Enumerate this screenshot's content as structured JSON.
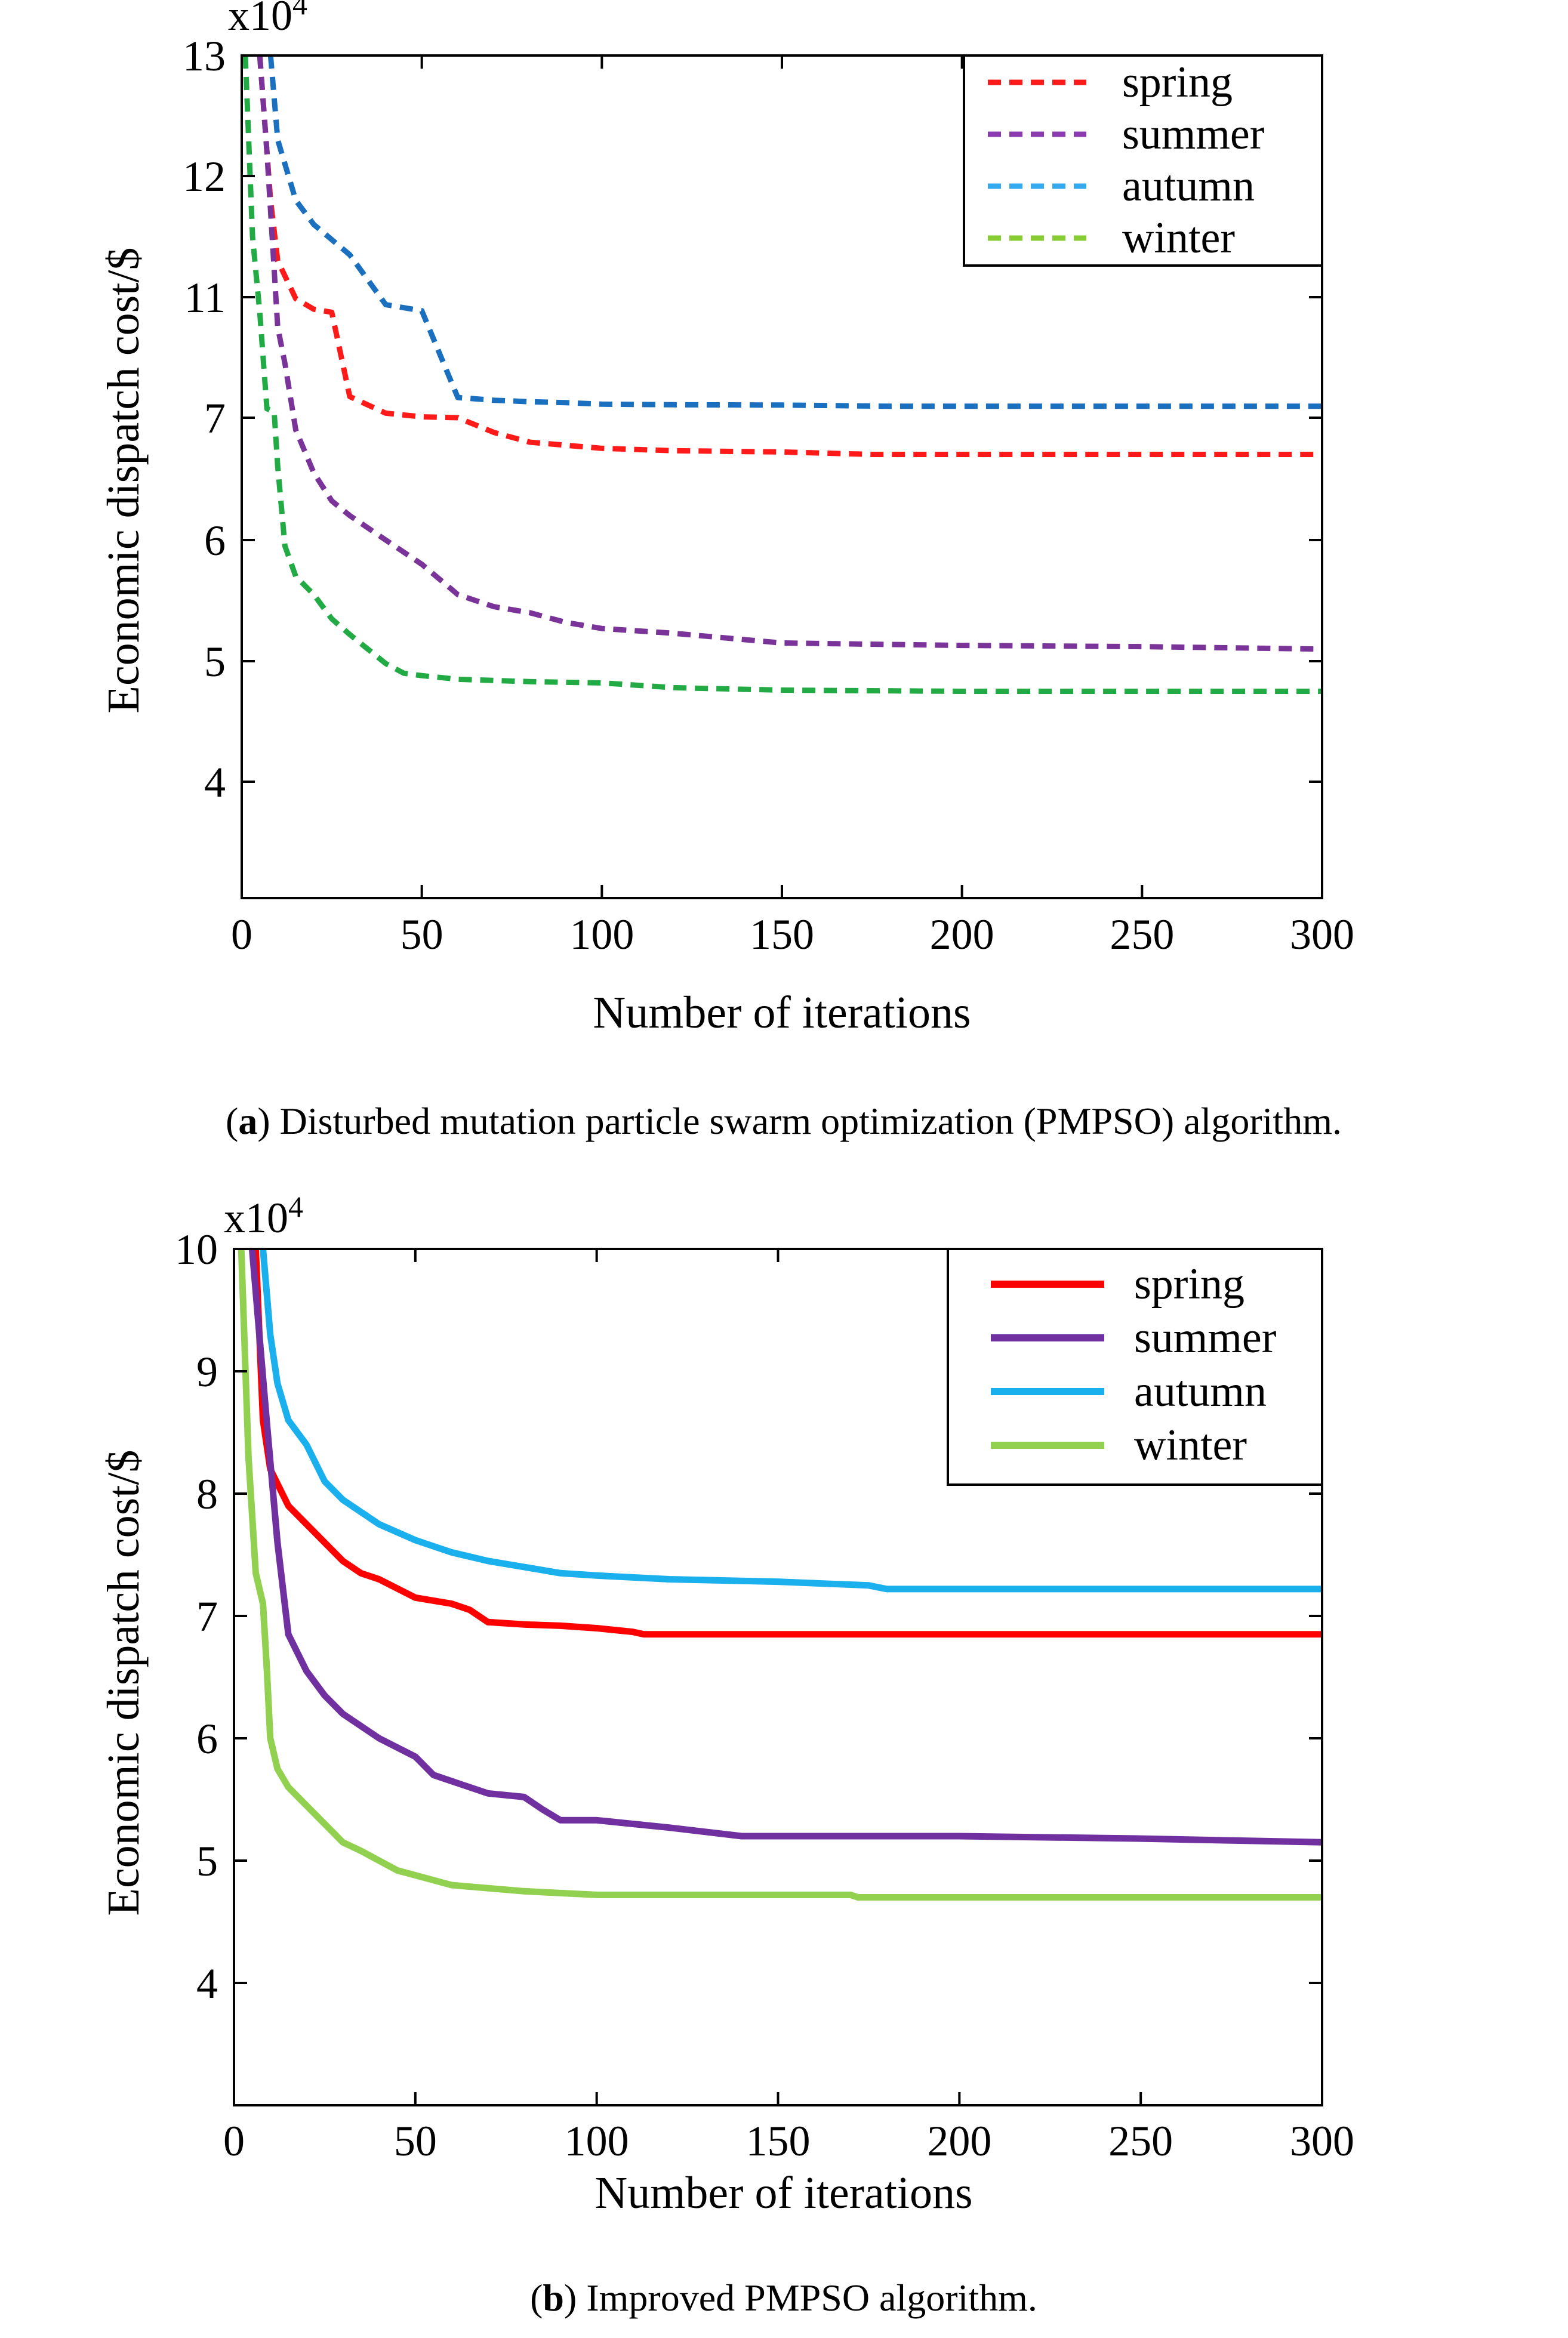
{
  "chart_data": [
    {
      "type": "line",
      "panel": "a",
      "title": "",
      "xlabel": "Number of iterations",
      "ylabel": "Economic dispatch cost/$",
      "y_multiplier": "x10",
      "y_multiplier_exp": "4",
      "xlim": [
        0,
        300
      ],
      "xticks": [
        0,
        50,
        100,
        150,
        200,
        250,
        300
      ],
      "yticks": [
        4,
        5,
        6,
        7,
        11,
        12,
        13
      ],
      "line_style": "dashed",
      "legend_position": "top-right",
      "caption_label": "a",
      "caption_text": "Disturbed mutation particle swarm optimization (PMPSO) algorithm.",
      "series": [
        {
          "name": "spring",
          "color": "#ff1a1a",
          "legend_color": "#ff1a1a",
          "x": [
            5,
            8,
            10,
            15,
            20,
            25,
            30,
            40,
            50,
            60,
            70,
            80,
            100,
            120,
            150,
            175,
            200,
            250,
            300
          ],
          "y": [
            13,
            11.8,
            11.3,
            10.95,
            10.6,
            10.5,
            7.7,
            7.15,
            7.03,
            7.0,
            6.88,
            6.8,
            6.75,
            6.73,
            6.72,
            6.7,
            6.7,
            6.7,
            6.7
          ]
        },
        {
          "name": "summer",
          "color": "#7a3399",
          "legend_color": "#8a3bb0",
          "x": [
            5,
            7,
            10,
            12,
            15,
            20,
            25,
            30,
            40,
            50,
            60,
            70,
            80,
            90,
            100,
            120,
            150,
            200,
            250,
            300
          ],
          "y": [
            13,
            12.2,
            10.0,
            8.8,
            6.9,
            6.55,
            6.32,
            6.2,
            6.0,
            5.8,
            5.55,
            5.45,
            5.4,
            5.32,
            5.27,
            5.23,
            5.15,
            5.13,
            5.12,
            5.1
          ]
        },
        {
          "name": "autumn",
          "color": "#1a6fbf",
          "legend_color": "#33aaee",
          "x": [
            8,
            10,
            15,
            20,
            30,
            40,
            50,
            60,
            70,
            80,
            90,
            100,
            120,
            150,
            180,
            200,
            250,
            300
          ],
          "y": [
            13,
            12.3,
            11.8,
            11.6,
            11.35,
            10.75,
            10.55,
            7.67,
            7.58,
            7.53,
            7.5,
            7.45,
            7.43,
            7.42,
            7.38,
            7.38,
            7.38,
            7.38
          ]
        },
        {
          "name": "winter",
          "color": "#22aa44",
          "legend_color": "#88cc33",
          "x": [
            1,
            3,
            5,
            7,
            9,
            10,
            12,
            15,
            20,
            25,
            30,
            35,
            40,
            45,
            50,
            60,
            70,
            80,
            100,
            120,
            150,
            200,
            250,
            300
          ],
          "y": [
            13,
            11.5,
            10.5,
            7.3,
            7.2,
            6.6,
            5.95,
            5.7,
            5.55,
            5.35,
            5.22,
            5.1,
            4.98,
            4.9,
            4.88,
            4.85,
            4.84,
            4.83,
            4.82,
            4.78,
            4.76,
            4.75,
            4.75,
            4.75
          ]
        }
      ]
    },
    {
      "type": "line",
      "panel": "b",
      "title": "",
      "xlabel": "Number of iterations",
      "ylabel": "Economic dispatch cost/$",
      "y_multiplier": "x10",
      "y_multiplier_exp": "4",
      "xlim": [
        0,
        300
      ],
      "ylim": [
        3,
        10
      ],
      "xticks": [
        0,
        50,
        100,
        150,
        200,
        250,
        300
      ],
      "yticks": [
        4,
        5,
        6,
        7,
        8,
        9,
        10
      ],
      "line_style": "solid",
      "legend_position": "top-right",
      "caption_label": "b",
      "caption_text": "Improved PMPSO algorithm.",
      "series": [
        {
          "name": "spring",
          "color": "#ff0000",
          "x": [
            6,
            8,
            10,
            15,
            20,
            25,
            30,
            35,
            40,
            50,
            60,
            65,
            70,
            80,
            90,
            100,
            110,
            113,
            150,
            200,
            250,
            300
          ],
          "y": [
            10,
            8.6,
            8.2,
            7.9,
            7.75,
            7.6,
            7.45,
            7.35,
            7.3,
            7.15,
            7.1,
            7.05,
            6.95,
            6.93,
            6.92,
            6.9,
            6.87,
            6.85,
            6.85,
            6.85,
            6.85,
            6.85
          ]
        },
        {
          "name": "summer",
          "color": "#7030a0",
          "x": [
            5,
            7,
            9,
            12,
            15,
            20,
            25,
            30,
            40,
            50,
            55,
            60,
            70,
            80,
            85,
            90,
            100,
            110,
            120,
            140,
            150,
            200,
            250,
            300
          ],
          "y": [
            10,
            9.3,
            8.6,
            7.6,
            6.85,
            6.55,
            6.35,
            6.2,
            6.0,
            5.85,
            5.7,
            5.65,
            5.55,
            5.52,
            5.42,
            5.33,
            5.33,
            5.3,
            5.27,
            5.2,
            5.2,
            5.2,
            5.18,
            5.15
          ]
        },
        {
          "name": "autumn",
          "color": "#1ab0ee",
          "x": [
            8,
            10,
            12,
            15,
            20,
            25,
            30,
            40,
            50,
            60,
            70,
            80,
            90,
            100,
            120,
            150,
            175,
            180,
            200,
            250,
            300
          ],
          "y": [
            10,
            9.3,
            8.9,
            8.6,
            8.4,
            8.1,
            7.95,
            7.75,
            7.62,
            7.52,
            7.45,
            7.4,
            7.35,
            7.33,
            7.3,
            7.28,
            7.25,
            7.22,
            7.22,
            7.22,
            7.22
          ]
        },
        {
          "name": "winter",
          "color": "#92d050",
          "x": [
            2,
            4,
            6,
            8,
            9,
            10,
            12,
            15,
            20,
            25,
            30,
            35,
            40,
            45,
            50,
            60,
            80,
            100,
            150,
            170,
            172,
            200,
            250,
            300
          ],
          "y": [
            10,
            8.3,
            7.35,
            7.1,
            6.6,
            6.0,
            5.75,
            5.6,
            5.45,
            5.3,
            5.15,
            5.08,
            5.0,
            4.92,
            4.88,
            4.8,
            4.75,
            4.72,
            4.72,
            4.72,
            4.7,
            4.7,
            4.7,
            4.7
          ]
        }
      ]
    }
  ]
}
